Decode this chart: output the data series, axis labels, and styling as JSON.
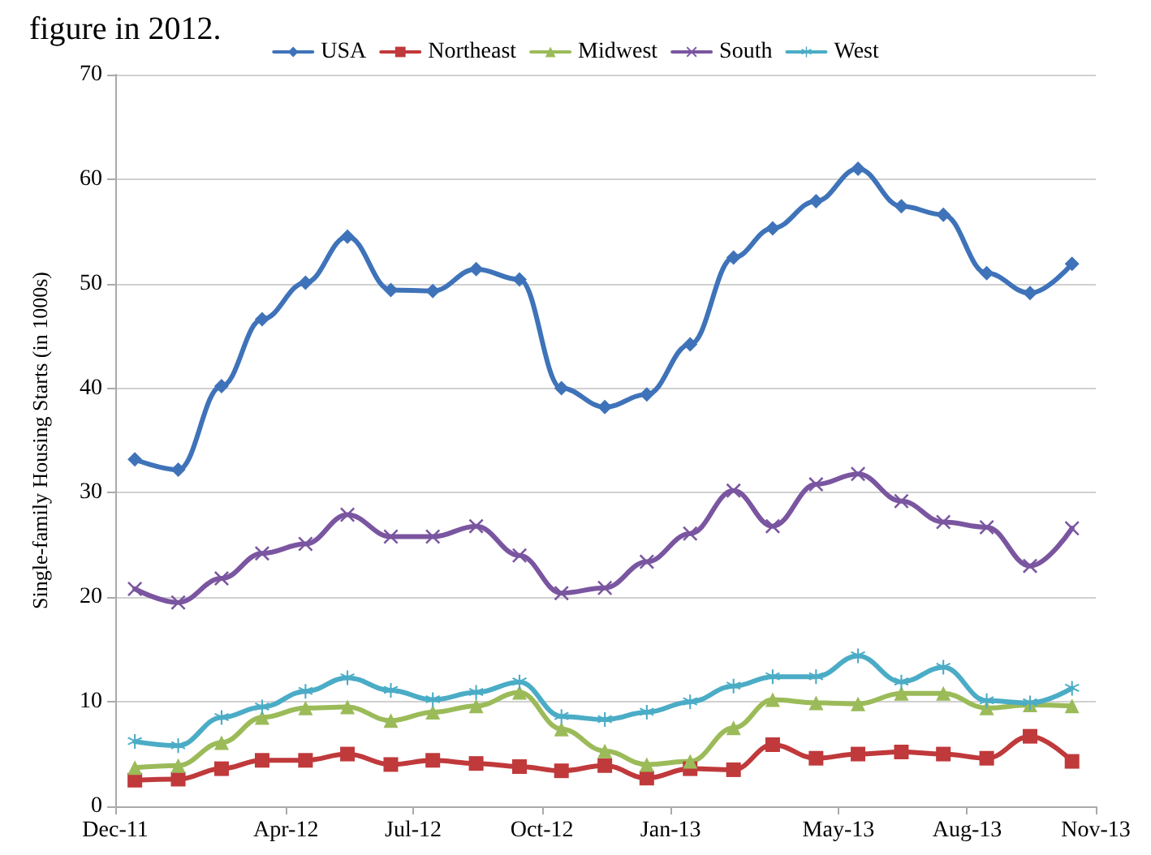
{
  "chart_data": {
    "type": "line",
    "annotations": [
      "figure in 2012."
    ],
    "ylabel": "Single-family Housing Starts (in 1000s)",
    "x": [
      "2011-12-15",
      "2012-01-15",
      "2012-02-15",
      "2012-03-15",
      "2012-04-15",
      "2012-05-15",
      "2012-06-15",
      "2012-07-15",
      "2012-08-15",
      "2012-09-15",
      "2012-10-15",
      "2012-11-15",
      "2012-12-15",
      "2013-01-15",
      "2013-02-15",
      "2013-03-15",
      "2013-04-15",
      "2013-05-15",
      "2013-06-15",
      "2013-07-15",
      "2013-08-15",
      "2013-09-15",
      "2013-10-15"
    ],
    "series": [
      {
        "name": "USA",
        "color": "#3f73b9",
        "marker": "diamond",
        "values": [
          33.2,
          32.2,
          40.2,
          46.6,
          50.1,
          54.5,
          49.4,
          49.3,
          51.4,
          50.4,
          40.0,
          38.2,
          39.4,
          44.2,
          52.5,
          55.3,
          57.9,
          61.0,
          57.4,
          56.6,
          51.0,
          49.1,
          51.9
        ]
      },
      {
        "name": "Northeast",
        "color": "#c0393b",
        "marker": "square",
        "values": [
          2.5,
          2.6,
          3.6,
          4.4,
          4.4,
          5.0,
          4.0,
          4.4,
          4.1,
          3.8,
          3.4,
          3.9,
          2.7,
          3.6,
          3.5,
          5.9,
          4.6,
          5.0,
          5.2,
          5.0,
          4.6,
          6.7,
          4.3
        ]
      },
      {
        "name": "Midwest",
        "color": "#9bbb59",
        "marker": "triangle",
        "values": [
          3.7,
          3.9,
          6.1,
          8.5,
          9.4,
          9.5,
          8.2,
          9.0,
          9.6,
          10.9,
          7.4,
          5.3,
          4.0,
          4.3,
          7.5,
          10.2,
          9.9,
          9.8,
          10.8,
          10.8,
          9.4,
          9.7,
          9.6
        ]
      },
      {
        "name": "South",
        "color": "#7a55a0",
        "marker": "cross",
        "values": [
          20.8,
          19.5,
          21.8,
          24.2,
          25.1,
          27.9,
          25.8,
          25.8,
          26.8,
          24.0,
          20.4,
          20.9,
          23.4,
          26.1,
          30.2,
          26.8,
          30.8,
          31.8,
          29.2,
          27.2,
          26.7,
          23.0,
          26.6
        ]
      },
      {
        "name": "West",
        "color": "#4bacc6",
        "marker": "star",
        "values": [
          6.2,
          5.8,
          8.5,
          9.5,
          11.0,
          12.3,
          11.1,
          10.2,
          10.9,
          11.9,
          8.6,
          8.3,
          9.0,
          10.0,
          11.5,
          12.4,
          12.4,
          14.4,
          11.9,
          13.3,
          10.1,
          9.9,
          11.3
        ]
      }
    ],
    "xlim": [
      "2011-12-01",
      "2013-11-01"
    ],
    "xticks": [
      {
        "value": "2011-12-01",
        "label": "Dec-11"
      },
      {
        "value": "2012-04-01",
        "label": "Apr-12"
      },
      {
        "value": "2012-07-01",
        "label": "Jul-12"
      },
      {
        "value": "2012-10-01",
        "label": "Oct-12"
      },
      {
        "value": "2013-01-01",
        "label": "Jan-13"
      },
      {
        "value": "2013-05-01",
        "label": "May-13"
      },
      {
        "value": "2013-08-01",
        "label": "Aug-13"
      },
      {
        "value": "2013-11-01",
        "label": "Nov-13"
      }
    ],
    "ylim": [
      0,
      70
    ],
    "yticks": [
      0,
      10,
      20,
      30,
      40,
      50,
      60,
      70
    ],
    "grid": "y",
    "legend": "top",
    "line_style": "solid"
  }
}
